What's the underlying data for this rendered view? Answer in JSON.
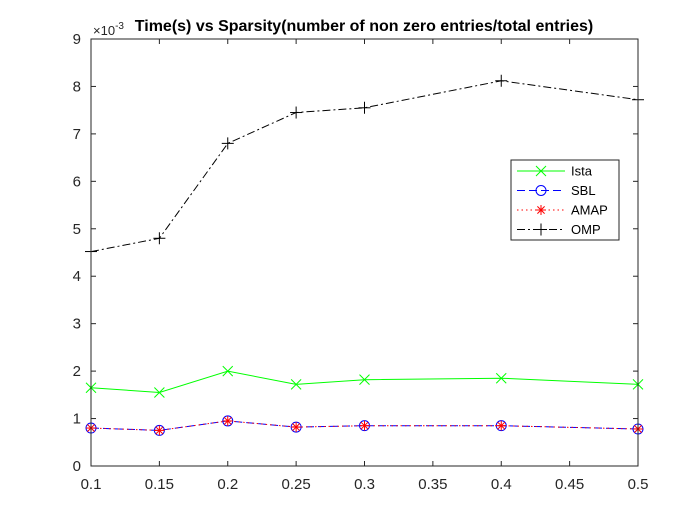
{
  "chart_data": {
    "type": "line",
    "title": "Time(s) vs Sparsity(number of non zero entries/total entries)",
    "xlabel": "",
    "ylabel": "",
    "y_multiplier": {
      "base": "×10",
      "exponent": "-3"
    },
    "x": [
      0.1,
      0.15,
      0.2,
      0.25,
      0.3,
      0.4,
      0.5
    ],
    "xlim": [
      0.1,
      0.5
    ],
    "ylim": [
      0,
      9
    ],
    "x_ticks": [
      "0.1",
      "0.15",
      "0.2",
      "0.25",
      "0.3",
      "0.35",
      "0.4",
      "0.45",
      "0.5"
    ],
    "y_ticks": [
      "0",
      "1",
      "2",
      "3",
      "4",
      "5",
      "6",
      "7",
      "8",
      "9"
    ],
    "grid": false,
    "legend_position": "right",
    "series": [
      {
        "name": "Ista",
        "color": "#00ff00",
        "marker": "x",
        "line": "solid",
        "values": [
          1.65,
          1.55,
          2.0,
          1.72,
          1.82,
          1.85,
          1.72
        ]
      },
      {
        "name": "SBL",
        "color": "#0000ff",
        "marker": "circle",
        "line": "dashed",
        "values": [
          0.8,
          0.75,
          0.95,
          0.82,
          0.85,
          0.85,
          0.78
        ]
      },
      {
        "name": "AMAP",
        "color": "#ff0000",
        "marker": "star",
        "line": "dotted",
        "values": [
          0.8,
          0.75,
          0.95,
          0.82,
          0.85,
          0.85,
          0.78
        ]
      },
      {
        "name": "OMP",
        "color": "#000000",
        "marker": "plus",
        "line": "dashdot",
        "values": [
          4.52,
          4.8,
          6.8,
          7.45,
          7.55,
          8.12,
          7.72
        ]
      }
    ]
  }
}
